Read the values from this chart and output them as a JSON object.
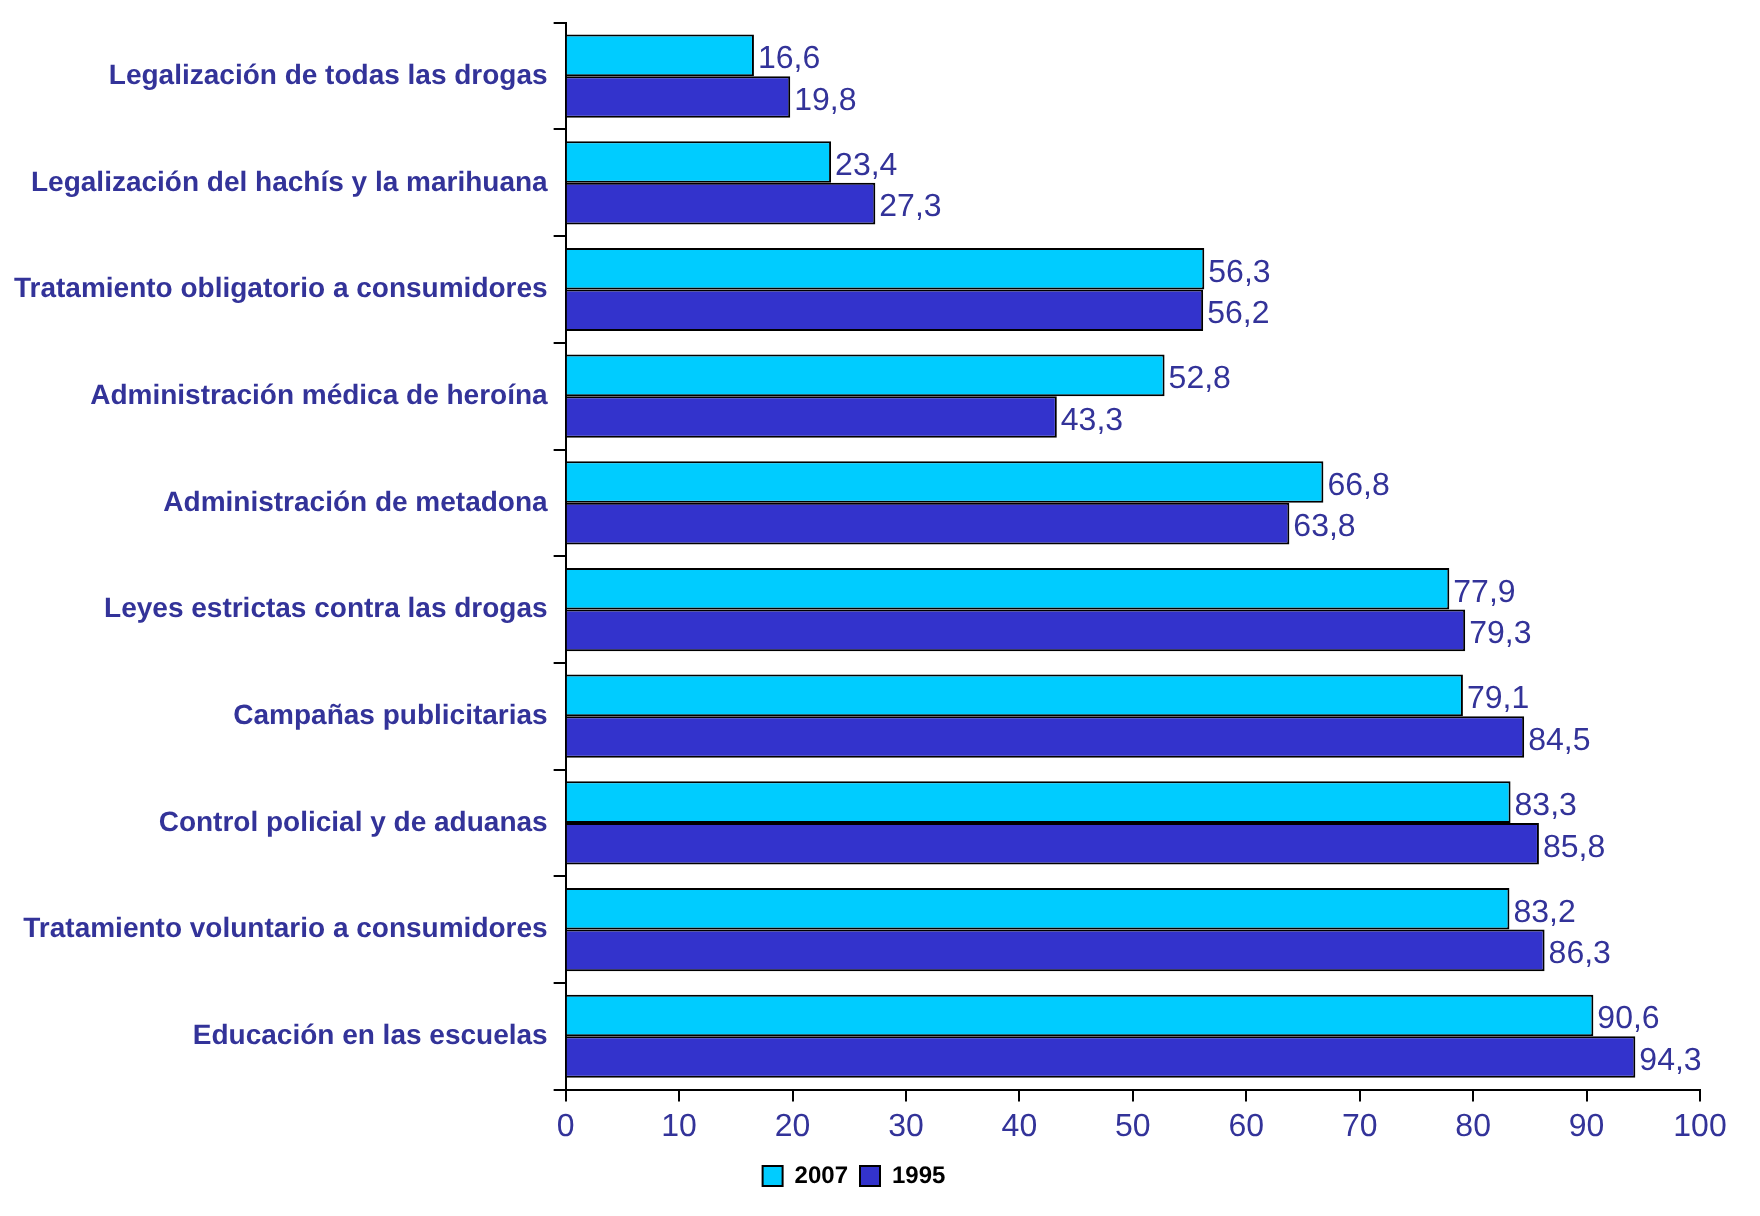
{
  "chart_data": {
    "type": "bar",
    "orientation": "horizontal",
    "categories": [
      "Legalización de todas las drogas",
      "Legalización del hachís y la marihuana",
      "Tratamiento obligatorio a consumidores",
      "Administración médica de heroína",
      "Administración de metadona",
      "Leyes estrictas contra las drogas",
      "Campañas publicitarias",
      "Control policial y de aduanas",
      "Tratamiento voluntario a consumidores",
      "Educación en las escuelas"
    ],
    "series": [
      {
        "name": "2007",
        "color": "#00ccff",
        "values": [
          16.6,
          23.4,
          56.3,
          52.8,
          66.8,
          77.9,
          79.1,
          83.3,
          83.2,
          90.6
        ],
        "value_labels": [
          "16,6",
          "23,4",
          "56,3",
          "52,8",
          "66,8",
          "77,9",
          "79,1",
          "83,3",
          "83,2",
          "90,6"
        ]
      },
      {
        "name": "1995",
        "color": "#3333cc",
        "values": [
          19.8,
          27.3,
          56.2,
          43.3,
          63.8,
          79.3,
          84.5,
          85.8,
          86.3,
          94.3
        ],
        "value_labels": [
          "19,8",
          "27,3",
          "56,2",
          "43,3",
          "63,8",
          "79,3",
          "84,5",
          "85,8",
          "86,3",
          "94,3"
        ]
      }
    ],
    "xlim": [
      0,
      100
    ],
    "xticks": [
      0,
      10,
      20,
      30,
      40,
      50,
      60,
      70,
      80,
      90,
      100
    ],
    "grid": false,
    "legend": "bottom"
  }
}
